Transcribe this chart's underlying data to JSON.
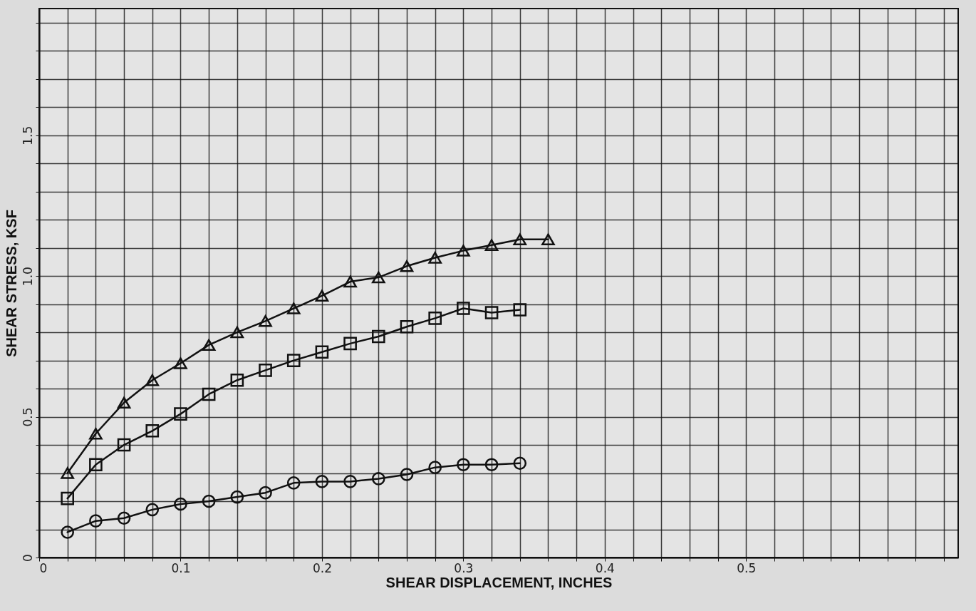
{
  "chart_data": {
    "type": "line",
    "xlabel": "SHEAR DISPLACEMENT, INCHES",
    "ylabel": "SHEAR STRESS, KSF",
    "xlim": [
      0,
      0.65
    ],
    "ylim": [
      0,
      1.95
    ],
    "xticks": [
      {
        "value": 0,
        "label": "0"
      },
      {
        "value": 0.02,
        "label": null
      },
      {
        "value": 0.04,
        "label": null
      },
      {
        "value": 0.06,
        "label": null
      },
      {
        "value": 0.08,
        "label": null
      },
      {
        "value": 0.1,
        "label": "0.1"
      },
      {
        "value": 0.12,
        "label": null
      },
      {
        "value": 0.14,
        "label": null
      },
      {
        "value": 0.16,
        "label": null
      },
      {
        "value": 0.18,
        "label": null
      },
      {
        "value": 0.2,
        "label": "0.2"
      },
      {
        "value": 0.22,
        "label": null
      },
      {
        "value": 0.24,
        "label": null
      },
      {
        "value": 0.26,
        "label": null
      },
      {
        "value": 0.28,
        "label": null
      },
      {
        "value": 0.3,
        "label": "0.3"
      },
      {
        "value": 0.32,
        "label": null
      },
      {
        "value": 0.34,
        "label": null
      },
      {
        "value": 0.36,
        "label": null
      },
      {
        "value": 0.38,
        "label": null
      },
      {
        "value": 0.4,
        "label": "0.4"
      },
      {
        "value": 0.42,
        "label": null
      },
      {
        "value": 0.44,
        "label": null
      },
      {
        "value": 0.46,
        "label": null
      },
      {
        "value": 0.48,
        "label": null
      },
      {
        "value": 0.5,
        "label": "0.5"
      },
      {
        "value": 0.52,
        "label": null
      },
      {
        "value": 0.54,
        "label": null
      },
      {
        "value": 0.56,
        "label": null
      },
      {
        "value": 0.58,
        "label": null
      },
      {
        "value": 0.6,
        "label": null
      },
      {
        "value": 0.62,
        "label": null
      },
      {
        "value": 0.64,
        "label": null
      }
    ],
    "yticks": [
      {
        "value": 0,
        "label": "0"
      },
      {
        "value": 0.1,
        "label": null
      },
      {
        "value": 0.2,
        "label": null
      },
      {
        "value": 0.3,
        "label": null
      },
      {
        "value": 0.4,
        "label": null
      },
      {
        "value": 0.5,
        "label": "0.5"
      },
      {
        "value": 0.6,
        "label": null
      },
      {
        "value": 0.7,
        "label": null
      },
      {
        "value": 0.8,
        "label": null
      },
      {
        "value": 0.9,
        "label": null
      },
      {
        "value": 1.0,
        "label": "1.0"
      },
      {
        "value": 1.1,
        "label": null
      },
      {
        "value": 1.2,
        "label": null
      },
      {
        "value": 1.3,
        "label": null
      },
      {
        "value": 1.4,
        "label": null
      },
      {
        "value": 1.5,
        "label": "1.5"
      },
      {
        "value": 1.6,
        "label": null
      },
      {
        "value": 1.7,
        "label": null
      },
      {
        "value": 1.8,
        "label": null
      },
      {
        "value": 1.9,
        "label": null
      }
    ],
    "grid": true,
    "line_style": "solid",
    "x": [
      0.02,
      0.04,
      0.06,
      0.08,
      0.1,
      0.12,
      0.14,
      0.16,
      0.18,
      0.2,
      0.22,
      0.24,
      0.26,
      0.28,
      0.3,
      0.32,
      0.34
    ],
    "series": [
      {
        "color": "#111111",
        "marker": "triangle",
        "x": [
          0.02,
          0.04,
          0.06,
          0.08,
          0.1,
          0.12,
          0.14,
          0.16,
          0.18,
          0.2,
          0.22,
          0.24,
          0.26,
          0.28,
          0.3,
          0.32,
          0.34,
          0.36
        ],
        "values": [
          0.3,
          0.44,
          0.55,
          0.63,
          0.69,
          0.755,
          0.8,
          0.84,
          0.885,
          0.93,
          0.98,
          0.995,
          1.035,
          1.065,
          1.09,
          1.11,
          1.13,
          1.13
        ]
      },
      {
        "color": "#111111",
        "marker": "square",
        "values": [
          0.21,
          0.33,
          0.4,
          0.45,
          0.51,
          0.58,
          0.63,
          0.665,
          0.7,
          0.73,
          0.76,
          0.785,
          0.82,
          0.85,
          0.885,
          0.87,
          0.88
        ]
      },
      {
        "color": "#111111",
        "marker": "circle",
        "values": [
          0.09,
          0.13,
          0.14,
          0.17,
          0.19,
          0.2,
          0.215,
          0.23,
          0.265,
          0.27,
          0.27,
          0.28,
          0.295,
          0.32,
          0.33,
          0.33,
          0.335
        ]
      }
    ]
  }
}
